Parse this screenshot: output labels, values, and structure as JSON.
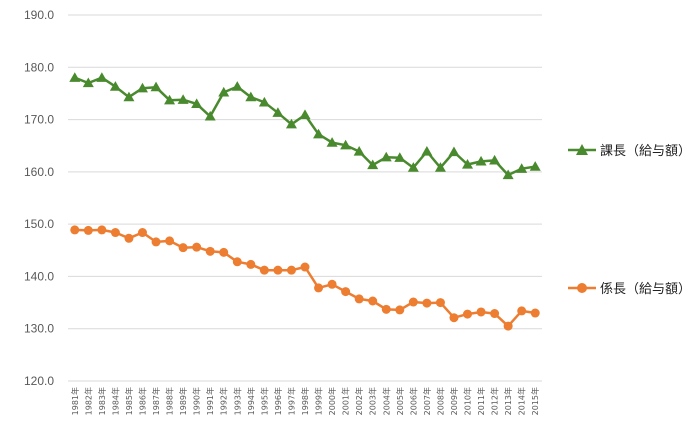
{
  "chart_data": {
    "type": "line",
    "title": "",
    "xlabel": "",
    "ylabel": "",
    "ylim": [
      120.0,
      190.0
    ],
    "yticks": [
      "120.0",
      "130.0",
      "140.0",
      "150.0",
      "160.0",
      "170.0",
      "180.0",
      "190.0"
    ],
    "grid": true,
    "legend_position": "right",
    "categories": [
      "1981年",
      "1982年",
      "1983年",
      "1984年",
      "1985年",
      "1986年",
      "1987年",
      "1988年",
      "1989年",
      "1990年",
      "1991年",
      "1992年",
      "1993年",
      "1994年",
      "1995年",
      "1996年",
      "1997年",
      "1998年",
      "1999年",
      "2000年",
      "2001年",
      "2002年",
      "2003年",
      "2004年",
      "2005年",
      "2006年",
      "2007年",
      "2008年",
      "2009年",
      "2010年",
      "2011年",
      "2012年",
      "2013年",
      "2014年",
      "2015年"
    ],
    "series": [
      {
        "name": "課長（給与額）",
        "color": "#4a8a2e",
        "marker": "triangle",
        "values": [
          178.0,
          177.0,
          178.0,
          176.3,
          174.3,
          176.0,
          176.2,
          173.7,
          173.8,
          173.0,
          170.6,
          175.2,
          176.3,
          174.3,
          173.3,
          171.3,
          169.1,
          170.9,
          167.2,
          165.6,
          165.1,
          163.9,
          161.3,
          162.8,
          162.7,
          160.8,
          163.9,
          160.8,
          163.8,
          161.4,
          162.0,
          162.2,
          159.4,
          160.6,
          161.0
        ]
      },
      {
        "name": "係長（給与額）",
        "color": "#ed7d31",
        "marker": "circle",
        "values": [
          148.9,
          148.8,
          148.9,
          148.4,
          147.3,
          148.4,
          146.6,
          146.8,
          145.5,
          145.6,
          144.8,
          144.6,
          142.8,
          142.3,
          141.2,
          141.2,
          141.2,
          141.8,
          137.8,
          138.5,
          137.1,
          135.7,
          135.3,
          133.7,
          133.6,
          135.1,
          134.9,
          135.0,
          132.1,
          132.8,
          133.2,
          132.9,
          130.5,
          133.4,
          133.0
        ]
      }
    ]
  }
}
